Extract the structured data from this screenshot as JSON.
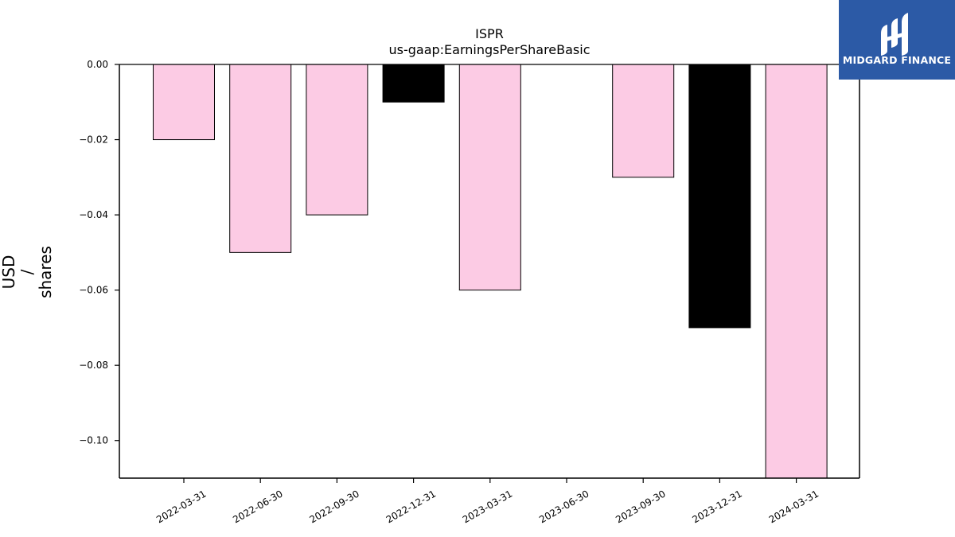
{
  "brand": {
    "name": "MIDGARD FINANCE",
    "background": "#2c5aa6",
    "foreground": "#ffffff",
    "icon": "midgard-logo-icon"
  },
  "chart_data": {
    "type": "bar",
    "title_lines": [
      "ISPR",
      "us-gaap:EarningsPerShareBasic"
    ],
    "ylabel_lines": [
      "USD",
      "/",
      "shares"
    ],
    "xlabel": "",
    "categories": [
      "2022-03-31",
      "2022-06-30",
      "2022-09-30",
      "2022-12-31",
      "2023-03-31",
      "2023-06-30",
      "2023-09-30",
      "2023-12-31",
      "2024-03-31"
    ],
    "values": [
      -0.02,
      -0.05,
      -0.04,
      -0.01,
      -0.06,
      0.0,
      -0.03,
      -0.07,
      -0.11
    ],
    "bar_colors": [
      "#fccbe4",
      "#fccbe4",
      "#fccbe4",
      "#000000",
      "#fccbe4",
      "#fccbe4",
      "#fccbe4",
      "#000000",
      "#fccbe4"
    ],
    "edge_color": "#000000",
    "ylim": [
      -0.11,
      0.0
    ],
    "yticks": [
      0.0,
      -0.02,
      -0.04,
      -0.06,
      -0.08,
      -0.1
    ],
    "ytick_labels": [
      "0.00",
      "−0.02",
      "−0.04",
      "−0.06",
      "−0.08",
      "−0.10"
    ],
    "grid": false,
    "legend": false
  }
}
